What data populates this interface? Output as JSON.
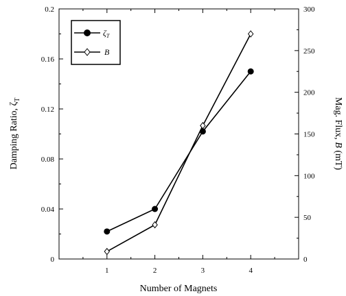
{
  "chart_data": {
    "type": "line",
    "x": [
      1,
      2,
      3,
      4
    ],
    "xlabel": "Number of Magnets",
    "xlim": [
      0,
      5
    ],
    "xticks": [
      "1",
      "2",
      "3",
      "4"
    ],
    "ylabel_left_prefix": "Damping Ratio, ",
    "ylabel_left_symbol": "ζ",
    "ylabel_left_sub": "T",
    "ylim_left": [
      0,
      0.2
    ],
    "yticks_left": [
      "0",
      "0.04",
      "0.08",
      "0.12",
      "0.16",
      "0.2"
    ],
    "ylabel_right_prefix": "Mag. Flux, ",
    "ylabel_right_symbol": "B",
    "ylabel_right_suffix": " (mT)",
    "ylim_right": [
      0,
      300
    ],
    "yticks_right": [
      "0",
      "50",
      "100",
      "150",
      "200",
      "250",
      "300"
    ],
    "series": [
      {
        "name": "ζ",
        "name_sub": "T",
        "axis": "left",
        "marker": "filled-circle",
        "values": [
          0.022,
          0.04,
          0.102,
          0.15
        ]
      },
      {
        "name": "B",
        "axis": "right",
        "marker": "open-diamond",
        "values": [
          9,
          41,
          160,
          270
        ]
      }
    ],
    "grid": false,
    "legend_position": "top-left"
  }
}
